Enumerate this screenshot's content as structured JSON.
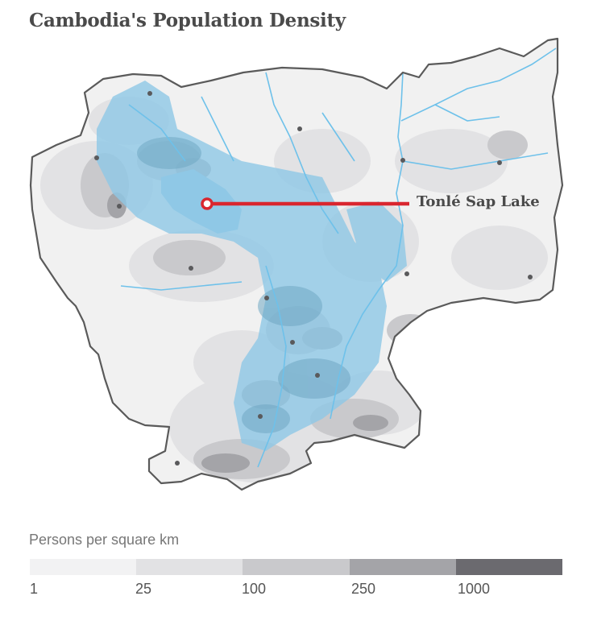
{
  "title": "Cambodia's Population Density",
  "annotation": {
    "label": "Tonlé Sap Lake"
  },
  "legend": {
    "title": "Persons per square km",
    "bins": [
      {
        "label": "1",
        "color": "#f2f2f3"
      },
      {
        "label": "25",
        "color": "#e2e2e4"
      },
      {
        "label": "100",
        "color": "#c9c9cc"
      },
      {
        "label": "250",
        "color": "#a4a4a8"
      },
      {
        "label": "1000",
        "color": "#6b6a6f"
      }
    ]
  },
  "colors": {
    "land": "#f1f1f1",
    "border": "#5a5a5a",
    "water": "#6ec1ea",
    "flood_zone": "#8fc8e6",
    "marker": "#d9262f"
  }
}
